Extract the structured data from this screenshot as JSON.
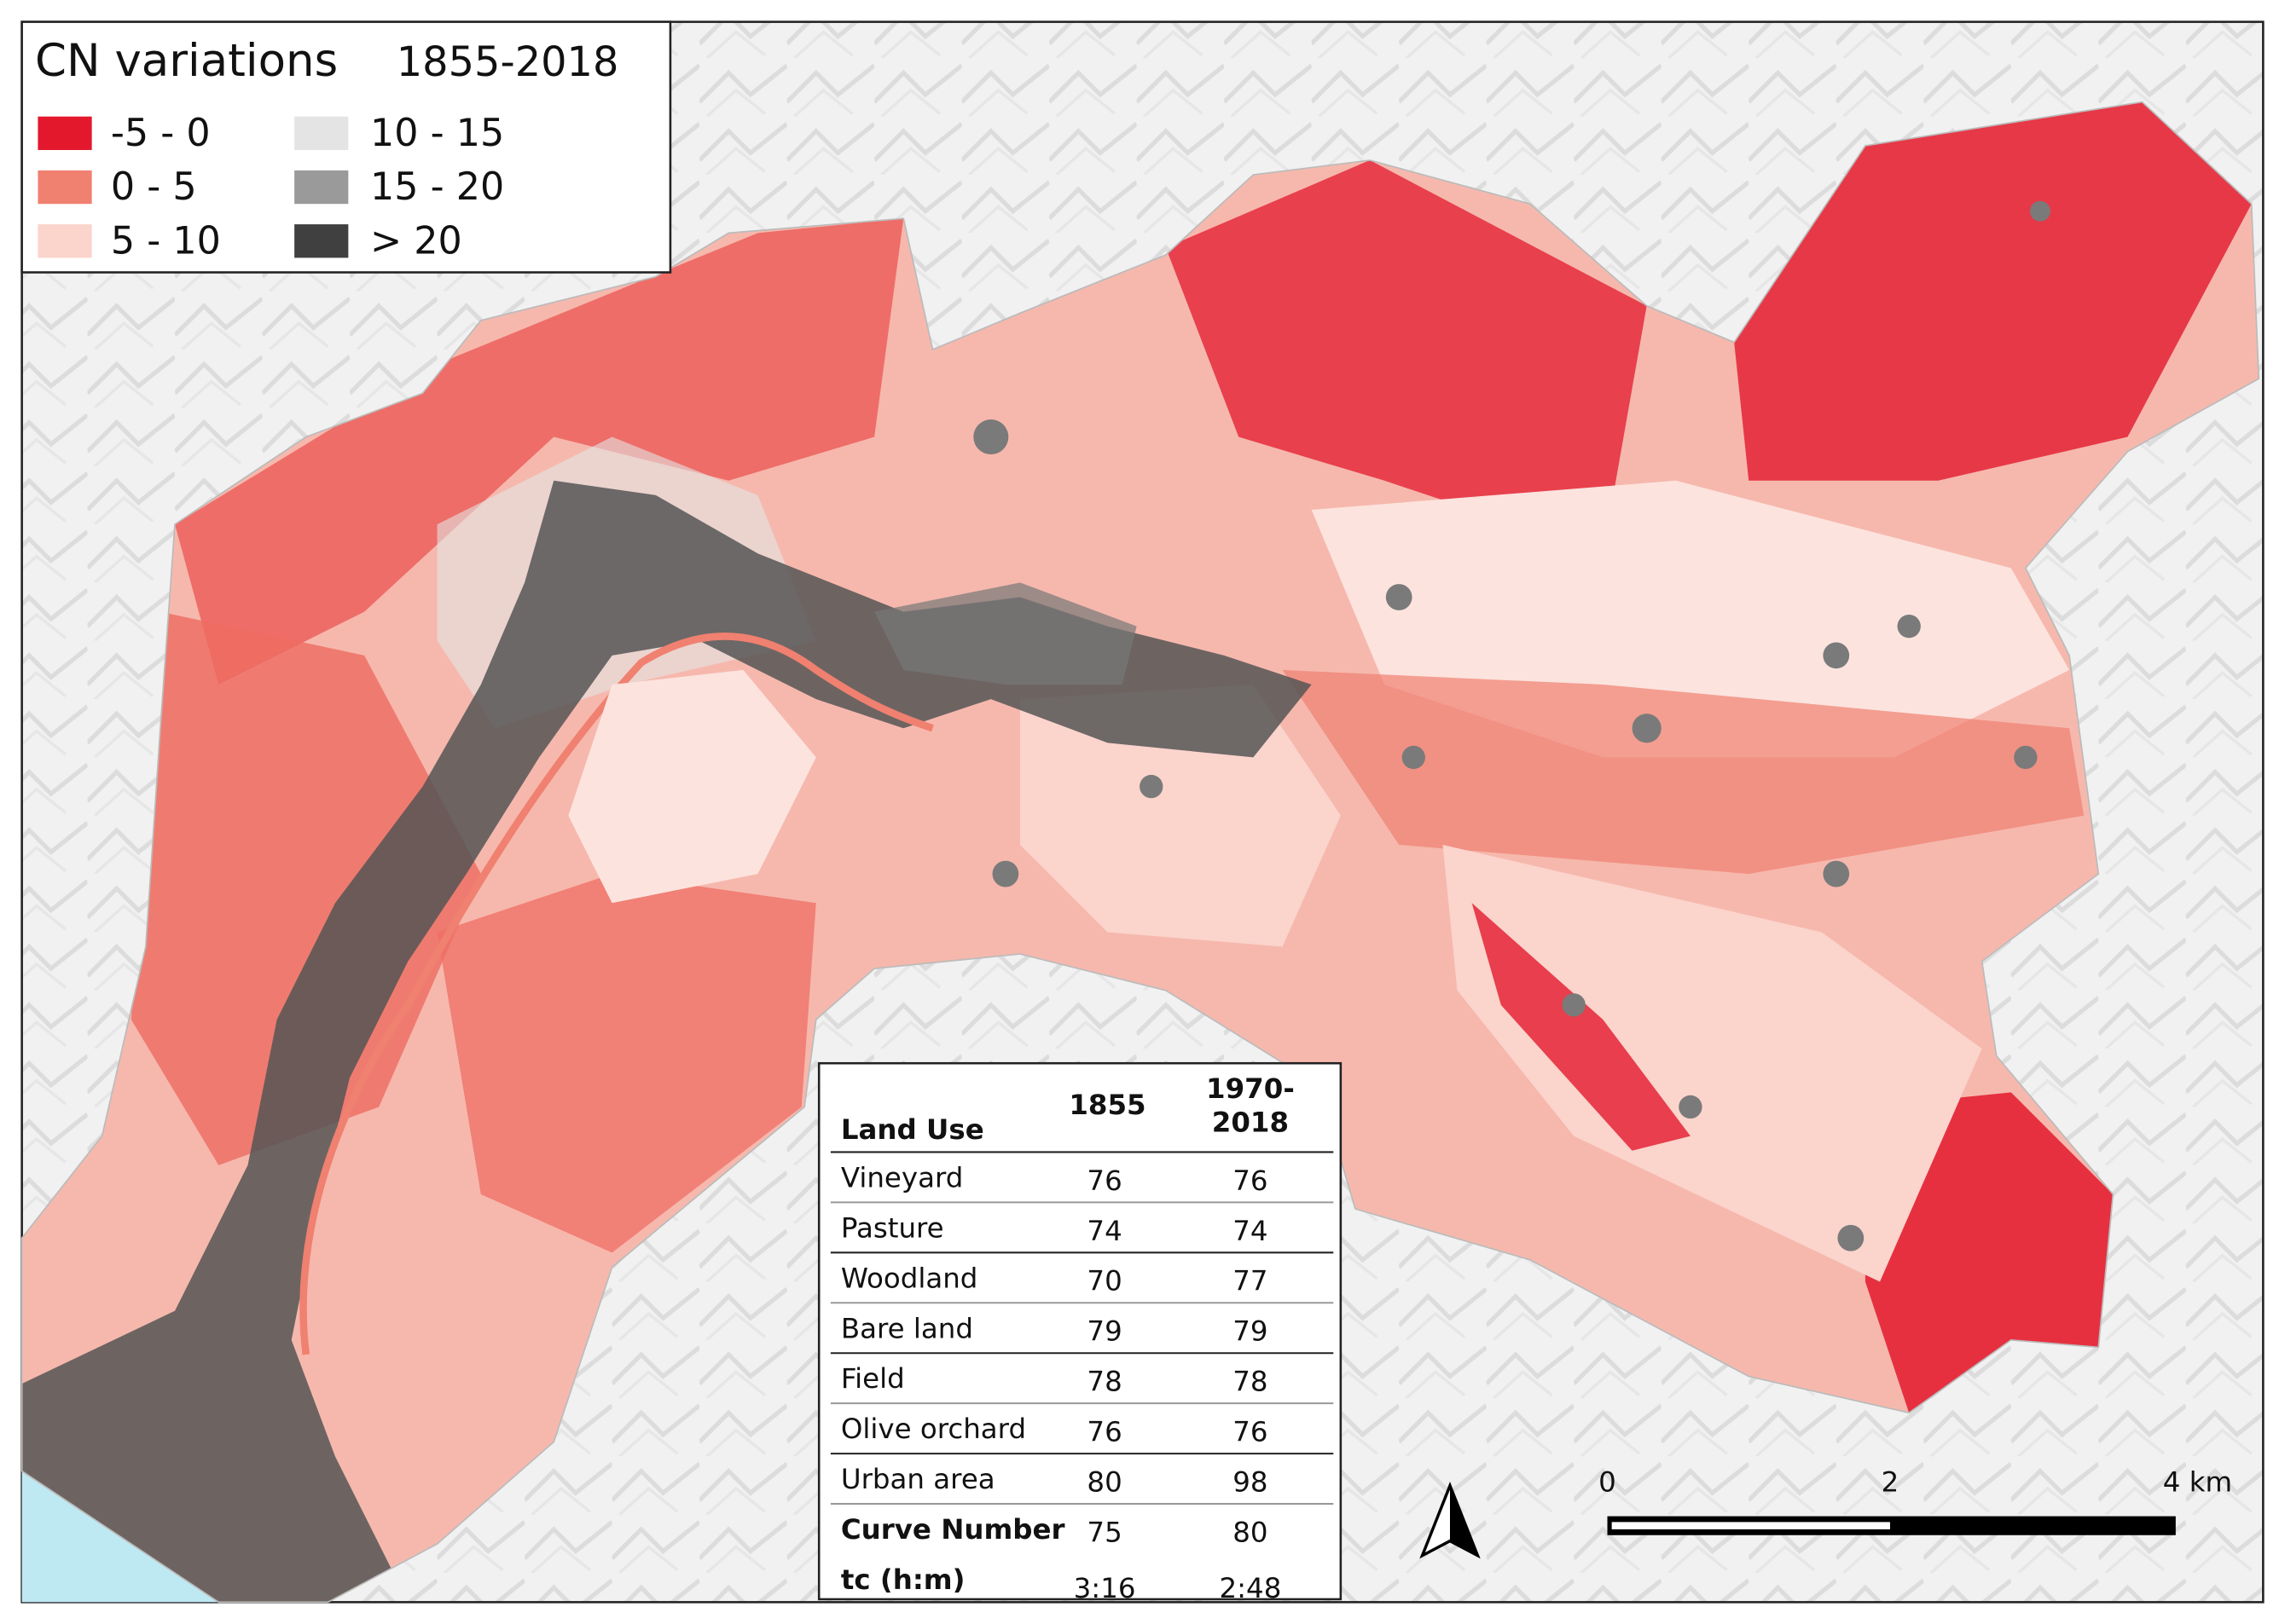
{
  "legend": {
    "title": "CN variations",
    "period": "1855-2018",
    "items": [
      {
        "label": "-5 - 0",
        "color": "#e3182d"
      },
      {
        "label": "0 - 5",
        "color": "#f08070"
      },
      {
        "label": "5 - 10",
        "color": "#fbd4cc"
      },
      {
        "label": "10 - 15",
        "color": "#e4e4e4"
      },
      {
        "label": "15 - 20",
        "color": "#9a9a9a"
      },
      {
        "label": "> 20",
        "color": "#404040"
      }
    ]
  },
  "table": {
    "header": [
      "Land Use",
      "1855",
      [
        "1970-",
        "2018"
      ]
    ],
    "rows": [
      [
        "Vineyard",
        76,
        76
      ],
      [
        "Pasture",
        74,
        74
      ],
      [
        "Woodland",
        70,
        77
      ],
      [
        "Bare land",
        79,
        79
      ],
      [
        "Field",
        78,
        78
      ],
      [
        "Olive orchard",
        76,
        76
      ],
      [
        "Urban area",
        80,
        98
      ],
      [
        "Curve Number",
        75,
        80
      ],
      [
        "tc (h:m)",
        "3:16",
        "2:48"
      ]
    ]
  },
  "scale_bar": {
    "labels": [
      "0",
      "2",
      "4 km"
    ]
  }
}
